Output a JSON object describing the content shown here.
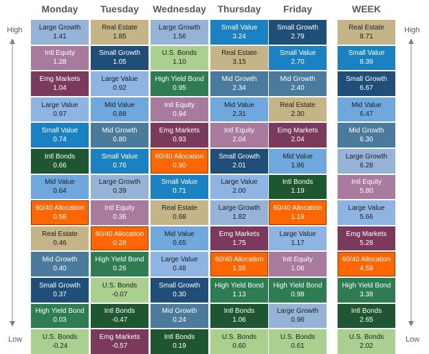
{
  "columns": [
    "Monday",
    "Tuesday",
    "Wednesday",
    "Thursday",
    "Friday",
    "WEEK"
  ],
  "high_label": "High",
  "low_label": "Low",
  "highlight_asset": "60/40 Allocation",
  "asset_colors": {
    "Large Growth": "#95b3d7",
    "Real Estate": "#c4b486",
    "Small Value": "#1a82c2",
    "Small Growth": "#1f4e79",
    "Intl Equity": "#a87b9e",
    "U.S. Bonds": "#a9d08e",
    "Emg Markets": "#7b3a5c",
    "Large Value": "#8db4e2",
    "High Yield Bond": "#2e7d52",
    "Mid Growth": "#4a7a9c",
    "Mid Value": "#6fa8dc",
    "60/40 Allocation": "#ff6600",
    "Intl Bonds": "#1e5631"
  },
  "dark_text_assets": [
    "Large Growth",
    "Real Estate",
    "U.S. Bonds",
    "Large Value",
    "Mid Value"
  ],
  "chart_data": {
    "type": "table",
    "columns": [
      "Monday",
      "Tuesday",
      "Wednesday",
      "Thursday",
      "Friday",
      "WEEK"
    ],
    "rows": [
      [
        {
          "asset": "Large Growth",
          "value": "1.41"
        },
        {
          "asset": "Real Estate",
          "value": "1.85"
        },
        {
          "asset": "Large Growth",
          "value": "1.56"
        },
        {
          "asset": "Small Value",
          "value": "3.24"
        },
        {
          "asset": "Small Growth",
          "value": "2.79"
        },
        {
          "asset": "Real Estate",
          "value": "8.71"
        }
      ],
      [
        {
          "asset": "Intl Equity",
          "value": "1.28"
        },
        {
          "asset": "Small Growth",
          "value": "1.05"
        },
        {
          "asset": "U.S. Bonds",
          "value": "1.10"
        },
        {
          "asset": "Real Estate",
          "value": "3.15"
        },
        {
          "asset": "Small Value",
          "value": "2.70"
        },
        {
          "asset": "Small Value",
          "value": "8.39"
        }
      ],
      [
        {
          "asset": "Emg Markets",
          "value": "1.04"
        },
        {
          "asset": "Large Value",
          "value": "0.92"
        },
        {
          "asset": "High Yield Bond",
          "value": "0.95"
        },
        {
          "asset": "Mid Growth",
          "value": "2.34"
        },
        {
          "asset": "Mid Growth",
          "value": "2.40"
        },
        {
          "asset": "Small Growth",
          "value": "6.67"
        }
      ],
      [
        {
          "asset": "Large Value",
          "value": "0.97"
        },
        {
          "asset": "Mid Value",
          "value": "0.88"
        },
        {
          "asset": "Intl Equity",
          "value": "0.94"
        },
        {
          "asset": "Mid Value",
          "value": "2.31"
        },
        {
          "asset": "Real Estate",
          "value": "2.30"
        },
        {
          "asset": "Mid Value",
          "value": "6.47"
        }
      ],
      [
        {
          "asset": "Small Value",
          "value": "0.74"
        },
        {
          "asset": "Mid Growth",
          "value": "0.80"
        },
        {
          "asset": "Emg Markets",
          "value": "0.93"
        },
        {
          "asset": "Intl Equity",
          "value": "2.04"
        },
        {
          "asset": "Emg Markets",
          "value": "2.04"
        },
        {
          "asset": "Mid Growth",
          "value": "6.30"
        }
      ],
      [
        {
          "asset": "Intl Bonds",
          "value": "0.66"
        },
        {
          "asset": "Small Value",
          "value": "0.76"
        },
        {
          "asset": "60/40 Allocation",
          "value": "0.90"
        },
        {
          "asset": "Small Growth",
          "value": "2.01"
        },
        {
          "asset": "Mid Value",
          "value": "1.86"
        },
        {
          "asset": "Large Growth",
          "value": "6.28"
        }
      ],
      [
        {
          "asset": "Mid Value",
          "value": "0.64"
        },
        {
          "asset": "Large Growth",
          "value": "0.39"
        },
        {
          "asset": "Small Value",
          "value": "0.71"
        },
        {
          "asset": "Large Value",
          "value": "2.00"
        },
        {
          "asset": "Intl Bonds",
          "value": "1.19"
        },
        {
          "asset": "Intl Equity",
          "value": "5.80"
        }
      ],
      [
        {
          "asset": "60/40 Allocation",
          "value": "0.58"
        },
        {
          "asset": "Intl Equity",
          "value": "0.36"
        },
        {
          "asset": "Real Estate",
          "value": "0.68"
        },
        {
          "asset": "Large Growth",
          "value": "1.82"
        },
        {
          "asset": "60/40 Allocation",
          "value": "1.19"
        },
        {
          "asset": "Large Value",
          "value": "5.66"
        }
      ],
      [
        {
          "asset": "Real Estate",
          "value": "0.46"
        },
        {
          "asset": "60/40 Allocation",
          "value": "0.28"
        },
        {
          "asset": "Mid Value",
          "value": "0.65"
        },
        {
          "asset": "Emg Markets",
          "value": "1.75"
        },
        {
          "asset": "Large Value",
          "value": "1.17"
        },
        {
          "asset": "Emg Markets",
          "value": "5.28"
        }
      ],
      [
        {
          "asset": "Mid Growth",
          "value": "0.40"
        },
        {
          "asset": "High Yield Bond",
          "value": "0.26"
        },
        {
          "asset": "Large Value",
          "value": "0.48"
        },
        {
          "asset": "60/40 Allocation",
          "value": "1.55"
        },
        {
          "asset": "Intl Equity",
          "value": "1.06"
        },
        {
          "asset": "60/40 Allocation",
          "value": "4.59"
        }
      ],
      [
        {
          "asset": "Small Growth",
          "value": "0.37"
        },
        {
          "asset": "U.S. Bonds",
          "value": "-0.07"
        },
        {
          "asset": "Small Growth",
          "value": "0.30"
        },
        {
          "asset": "High Yield Bond",
          "value": "1.13"
        },
        {
          "asset": "High Yield Bond",
          "value": "0.98"
        },
        {
          "asset": "High Yield Bond",
          "value": "3.38"
        }
      ],
      [
        {
          "asset": "High Yield Bond",
          "value": "0.03"
        },
        {
          "asset": "Intl Bonds",
          "value": "-0.47"
        },
        {
          "asset": "Mid Growth",
          "value": "0.24"
        },
        {
          "asset": "Intl Bonds",
          "value": "1.06"
        },
        {
          "asset": "Large Growth",
          "value": "0.96"
        },
        {
          "asset": "Intl Bonds",
          "value": "2.65"
        }
      ],
      [
        {
          "asset": "U.S. Bonds",
          "value": "-0.24"
        },
        {
          "asset": "Emg Markets",
          "value": "-0.57"
        },
        {
          "asset": "Intl Bonds",
          "value": "0.19"
        },
        {
          "asset": "U.S. Bonds",
          "value": "0.60"
        },
        {
          "asset": "U.S. Bonds",
          "value": "0.61"
        },
        {
          "asset": "U.S. Bonds",
          "value": "2.02"
        }
      ]
    ]
  }
}
